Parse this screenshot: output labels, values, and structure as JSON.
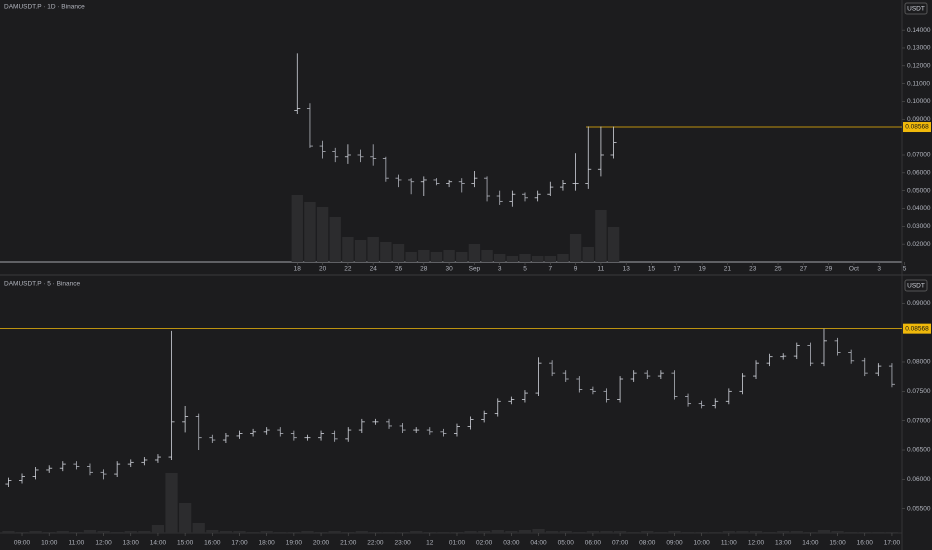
{
  "chart_data": [
    {
      "type": "ohlc",
      "title": "DAMUSDT.P · 1D · Binance",
      "currency": "USDT",
      "color": "#b2b5be",
      "volume_color": "#2c2c2e",
      "x": [
        0,
        1,
        2,
        3,
        4,
        5,
        6,
        7,
        8,
        9,
        10,
        11,
        12,
        13,
        14,
        15,
        16,
        17,
        18,
        19,
        20,
        21,
        22,
        23,
        24,
        25
      ],
      "open": [
        0.095,
        0.096,
        0.075,
        0.072,
        0.069,
        0.07,
        0.069,
        0.068,
        0.057,
        0.056,
        0.055,
        0.056,
        0.054,
        0.055,
        0.054,
        0.057,
        0.047,
        0.044,
        0.048,
        0.046,
        0.048,
        0.052,
        0.054,
        0.054,
        0.062,
        0.07
      ],
      "high": [
        0.127,
        0.099,
        0.078,
        0.074,
        0.076,
        0.073,
        0.076,
        0.069,
        0.059,
        0.057,
        0.058,
        0.057,
        0.056,
        0.057,
        0.061,
        0.058,
        0.05,
        0.05,
        0.049,
        0.05,
        0.055,
        0.056,
        0.071,
        0.086,
        0.086,
        0.086
      ],
      "low": [
        0.093,
        0.074,
        0.068,
        0.066,
        0.065,
        0.066,
        0.064,
        0.055,
        0.052,
        0.048,
        0.047,
        0.053,
        0.052,
        0.049,
        0.052,
        0.044,
        0.042,
        0.041,
        0.044,
        0.044,
        0.047,
        0.05,
        0.05,
        0.051,
        0.058,
        0.068
      ],
      "close": [
        0.096,
        0.075,
        0.072,
        0.069,
        0.07,
        0.069,
        0.068,
        0.057,
        0.056,
        0.055,
        0.056,
        0.054,
        0.055,
        0.054,
        0.057,
        0.047,
        0.044,
        0.048,
        0.046,
        0.048,
        0.052,
        0.054,
        0.054,
        0.062,
        0.07,
        0.077
      ],
      "volume": [
        67,
        60,
        55,
        45,
        25,
        22,
        25,
        20,
        18,
        10,
        12,
        10,
        12,
        10,
        18,
        12,
        8,
        6,
        8,
        6,
        6,
        8,
        28,
        15,
        52,
        35
      ],
      "xlim": [
        -23.5,
        47.8
      ],
      "ylim": [
        0.01,
        0.1569
      ],
      "xticks": [
        {
          "value": 0,
          "label": "18"
        },
        {
          "value": 2,
          "label": "20"
        },
        {
          "value": 4,
          "label": "22"
        },
        {
          "value": 6,
          "label": "24"
        },
        {
          "value": 8,
          "label": "26"
        },
        {
          "value": 10,
          "label": "28"
        },
        {
          "value": 12,
          "label": "30"
        },
        {
          "value": 14,
          "label": "Sep"
        },
        {
          "value": 16,
          "label": "3"
        },
        {
          "value": 18,
          "label": "5"
        },
        {
          "value": 20,
          "label": "7"
        },
        {
          "value": 22,
          "label": "9"
        },
        {
          "value": 24,
          "label": "11"
        },
        {
          "value": 26,
          "label": "13"
        },
        {
          "value": 28,
          "label": "15"
        },
        {
          "value": 30,
          "label": "17"
        },
        {
          "value": 32,
          "label": "19"
        },
        {
          "value": 34,
          "label": "21"
        },
        {
          "value": 36,
          "label": "23"
        },
        {
          "value": 38,
          "label": "25"
        },
        {
          "value": 40,
          "label": "27"
        },
        {
          "value": 42,
          "label": "29"
        },
        {
          "value": 44,
          "label": "Oct"
        },
        {
          "value": 46,
          "label": "3"
        },
        {
          "value": 48,
          "label": "5"
        }
      ],
      "yticks": [
        {
          "value": 0.14,
          "label": "0.14000"
        },
        {
          "value": 0.13,
          "label": "0.13000"
        },
        {
          "value": 0.12,
          "label": "0.12000"
        },
        {
          "value": 0.11,
          "label": "0.11000"
        },
        {
          "value": 0.1,
          "label": "0.10000"
        },
        {
          "value": 0.09,
          "label": "0.09000"
        },
        {
          "value": 0.07,
          "label": "0.07000"
        },
        {
          "value": 0.06,
          "label": "0.06000"
        },
        {
          "value": 0.05,
          "label": "0.05000"
        },
        {
          "value": 0.04,
          "label": "0.04000"
        },
        {
          "value": 0.03,
          "label": "0.03000"
        },
        {
          "value": 0.02,
          "label": "0.02000"
        }
      ],
      "price_line": {
        "value": 0.08568,
        "label": "0.08568",
        "color": "#f0b90b"
      }
    },
    {
      "type": "ohlc",
      "title": "DAMUSDT.P · 5 · Binance",
      "currency": "USDT",
      "color": "#b2b5be",
      "volume_color": "#2c2c2e",
      "x": [
        8.5,
        9,
        9.5,
        10,
        10.5,
        11,
        11.5,
        12,
        12.5,
        13,
        13.5,
        14,
        14.5,
        15,
        15.5,
        16,
        16.5,
        17,
        17.5,
        18,
        18.5,
        19,
        19.5,
        20,
        20.5,
        21,
        21.5,
        22,
        22.5,
        23,
        23.5,
        24,
        24.5,
        25,
        25.5,
        26,
        26.5,
        27,
        27.5,
        28,
        28.5,
        29,
        29.5,
        30,
        30.5,
        31,
        31.5,
        32,
        32.5,
        33,
        33.5,
        34,
        34.5,
        35,
        35.5,
        36,
        36.5,
        37,
        37.5,
        38,
        38.5,
        39,
        39.5,
        40,
        40.5,
        41
      ],
      "open": [
        0.0592,
        0.0598,
        0.0605,
        0.0616,
        0.0619,
        0.0626,
        0.0622,
        0.0612,
        0.0609,
        0.0626,
        0.0629,
        0.0633,
        0.0638,
        0.0698,
        0.0707,
        0.0671,
        0.0667,
        0.0674,
        0.0678,
        0.0681,
        0.0684,
        0.0678,
        0.0671,
        0.0671,
        0.0678,
        0.0669,
        0.0684,
        0.0698,
        0.0698,
        0.0691,
        0.0684,
        0.0684,
        0.0681,
        0.0678,
        0.069,
        0.0702,
        0.0712,
        0.0733,
        0.0736,
        0.0747,
        0.0798,
        0.0781,
        0.0771,
        0.0753,
        0.075,
        0.0736,
        0.0771,
        0.0781,
        0.0776,
        0.0781,
        0.0741,
        0.0729,
        0.0726,
        0.0733,
        0.075,
        0.0776,
        0.0798,
        0.0809,
        0.081,
        0.0828,
        0.0798,
        0.0836,
        0.0816,
        0.0802,
        0.0781,
        0.0793
      ],
      "high": [
        0.0603,
        0.061,
        0.0621,
        0.0624,
        0.0631,
        0.0631,
        0.0627,
        0.0617,
        0.0631,
        0.0634,
        0.0638,
        0.0643,
        0.0853,
        0.0725,
        0.0712,
        0.0676,
        0.0679,
        0.0683,
        0.0686,
        0.0689,
        0.0689,
        0.0683,
        0.0676,
        0.0683,
        0.0683,
        0.0689,
        0.0703,
        0.0703,
        0.0703,
        0.0696,
        0.0689,
        0.0689,
        0.0686,
        0.0695,
        0.0707,
        0.0717,
        0.0738,
        0.0741,
        0.0752,
        0.0808,
        0.0803,
        0.0786,
        0.0776,
        0.0758,
        0.0755,
        0.0776,
        0.0786,
        0.0786,
        0.0786,
        0.0786,
        0.0746,
        0.0734,
        0.0738,
        0.0755,
        0.0781,
        0.0803,
        0.0814,
        0.0815,
        0.0833,
        0.0833,
        0.0857,
        0.0841,
        0.0821,
        0.0807,
        0.0798,
        0.0798
      ],
      "low": [
        0.0587,
        0.0593,
        0.06,
        0.0611,
        0.0614,
        0.0617,
        0.0607,
        0.06,
        0.0604,
        0.0621,
        0.0624,
        0.0628,
        0.0633,
        0.068,
        0.065,
        0.0662,
        0.0662,
        0.0669,
        0.0673,
        0.0676,
        0.0673,
        0.0666,
        0.0666,
        0.0666,
        0.0664,
        0.0664,
        0.0679,
        0.0693,
        0.0686,
        0.0679,
        0.0679,
        0.0676,
        0.0673,
        0.0673,
        0.0685,
        0.0697,
        0.0707,
        0.0728,
        0.0731,
        0.0742,
        0.0776,
        0.0766,
        0.0748,
        0.0745,
        0.0731,
        0.0731,
        0.0766,
        0.0771,
        0.0771,
        0.0736,
        0.0724,
        0.0721,
        0.0721,
        0.0728,
        0.0745,
        0.0771,
        0.0793,
        0.0804,
        0.0805,
        0.0793,
        0.0793,
        0.0811,
        0.0797,
        0.0776,
        0.0776,
        0.0757
      ],
      "close": [
        0.0598,
        0.0605,
        0.0616,
        0.0619,
        0.0626,
        0.0622,
        0.0612,
        0.0609,
        0.0626,
        0.0629,
        0.0633,
        0.0638,
        0.0698,
        0.0707,
        0.0671,
        0.0667,
        0.0674,
        0.0678,
        0.0681,
        0.0684,
        0.0678,
        0.0671,
        0.0671,
        0.0678,
        0.0669,
        0.0684,
        0.0698,
        0.0698,
        0.0691,
        0.0684,
        0.0684,
        0.0681,
        0.0678,
        0.069,
        0.0702,
        0.0712,
        0.0733,
        0.0736,
        0.0747,
        0.0798,
        0.0781,
        0.0771,
        0.0753,
        0.075,
        0.0736,
        0.0771,
        0.0781,
        0.0776,
        0.0781,
        0.0741,
        0.0729,
        0.0726,
        0.0733,
        0.075,
        0.0776,
        0.0798,
        0.0809,
        0.081,
        0.0828,
        0.0798,
        0.0836,
        0.0816,
        0.0802,
        0.0781,
        0.0793,
        0.0762
      ],
      "volume": [
        2,
        1,
        2,
        1,
        2,
        1,
        3,
        2,
        1,
        2,
        2,
        8,
        60,
        30,
        10,
        3,
        2,
        2,
        1,
        2,
        1,
        1,
        2,
        1,
        2,
        1,
        2,
        1,
        1,
        1,
        2,
        1,
        1,
        1,
        2,
        2,
        3,
        2,
        3,
        4,
        2,
        2,
        1,
        2,
        2,
        2,
        1,
        2,
        1,
        2,
        1,
        1,
        1,
        2,
        2,
        2,
        1,
        2,
        2,
        1,
        3,
        2,
        1,
        1,
        1,
        1
      ],
      "xlim": [
        8.19,
        41.37
      ],
      "ylim": [
        0.05086,
        0.09448
      ],
      "xticks": [
        {
          "value": 9,
          "label": "09:00"
        },
        {
          "value": 10,
          "label": "10:00"
        },
        {
          "value": 11,
          "label": "11:00"
        },
        {
          "value": 12,
          "label": "12:00"
        },
        {
          "value": 13,
          "label": "13:00"
        },
        {
          "value": 14,
          "label": "14:00"
        },
        {
          "value": 15,
          "label": "15:00"
        },
        {
          "value": 16,
          "label": "16:00"
        },
        {
          "value": 17,
          "label": "17:00"
        },
        {
          "value": 18,
          "label": "18:00"
        },
        {
          "value": 19,
          "label": "19:00"
        },
        {
          "value": 20,
          "label": "20:00"
        },
        {
          "value": 21,
          "label": "21:00"
        },
        {
          "value": 22,
          "label": "22:00"
        },
        {
          "value": 23,
          "label": "23:00"
        },
        {
          "value": 24,
          "label": "12"
        },
        {
          "value": 25,
          "label": "01:00"
        },
        {
          "value": 26,
          "label": "02:00"
        },
        {
          "value": 27,
          "label": "03:00"
        },
        {
          "value": 28,
          "label": "04:00"
        },
        {
          "value": 29,
          "label": "05:00"
        },
        {
          "value": 30,
          "label": "06:00"
        },
        {
          "value": 31,
          "label": "07:00"
        },
        {
          "value": 32,
          "label": "08:00"
        },
        {
          "value": 33,
          "label": "09:00"
        },
        {
          "value": 34,
          "label": "10:00"
        },
        {
          "value": 35,
          "label": "11:00"
        },
        {
          "value": 36,
          "label": "12:00"
        },
        {
          "value": 37,
          "label": "13:00"
        },
        {
          "value": 38,
          "label": "14:00"
        },
        {
          "value": 39,
          "label": "15:00"
        },
        {
          "value": 40,
          "label": "16:00"
        },
        {
          "value": 41,
          "label": "17:00"
        }
      ],
      "yticks": [
        {
          "value": 0.09,
          "label": "0.09000"
        },
        {
          "value": 0.08,
          "label": "0.08000"
        },
        {
          "value": 0.075,
          "label": "0.07500"
        },
        {
          "value": 0.07,
          "label": "0.07000"
        },
        {
          "value": 0.065,
          "label": "0.06500"
        },
        {
          "value": 0.06,
          "label": "0.06000"
        },
        {
          "value": 0.055,
          "label": "0.05500"
        }
      ],
      "price_line": {
        "value": 0.08568,
        "label": "0.08568",
        "color": "#f0b90b"
      }
    }
  ]
}
